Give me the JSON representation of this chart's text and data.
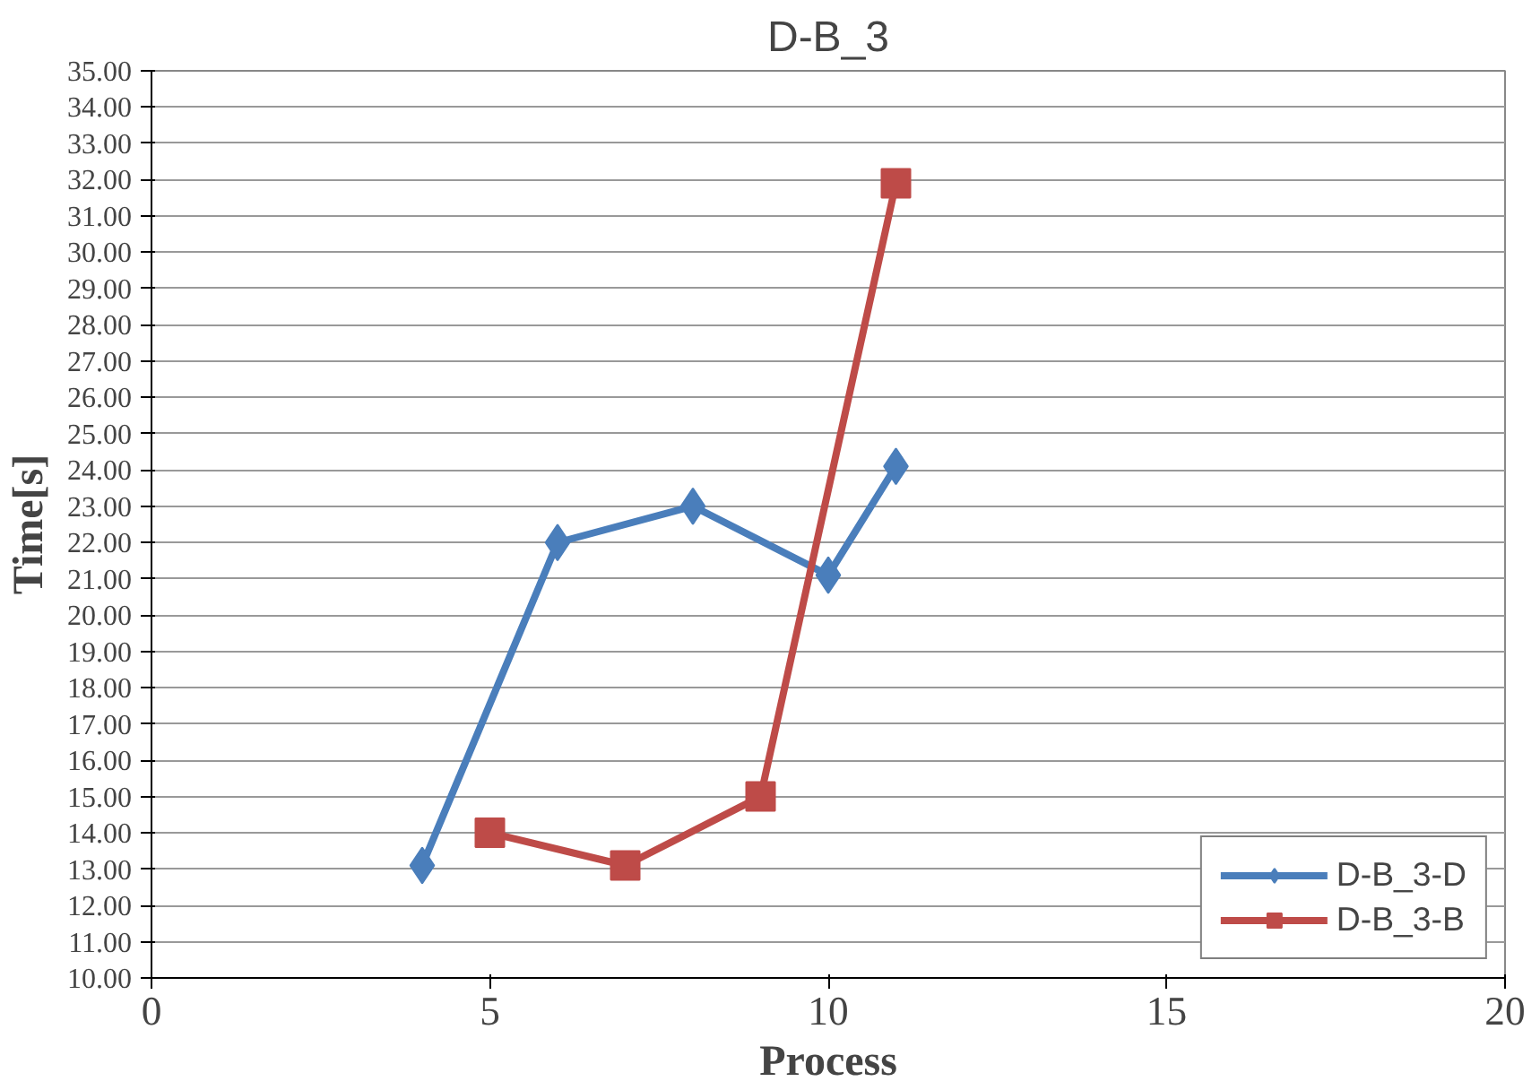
{
  "chart_data": {
    "type": "line",
    "title": "D-B_3",
    "xlabel": "Process",
    "ylabel": "Time[s]",
    "xlim": [
      0,
      20
    ],
    "xticks": [
      0,
      5,
      10,
      15,
      20
    ],
    "ylim": [
      10,
      35
    ],
    "yticks": [
      {
        "value": 10,
        "label": "10.00"
      },
      {
        "value": 11,
        "label": "11.00"
      },
      {
        "value": 12,
        "label": "12.00"
      },
      {
        "value": 13,
        "label": "13.00"
      },
      {
        "value": 14,
        "label": "14.00"
      },
      {
        "value": 15,
        "label": "15.00"
      },
      {
        "value": 16,
        "label": "16.00"
      },
      {
        "value": 17,
        "label": "17.00"
      },
      {
        "value": 18,
        "label": "18.00"
      },
      {
        "value": 19,
        "label": "19.00"
      },
      {
        "value": 20,
        "label": "20.00"
      },
      {
        "value": 21,
        "label": "21.00"
      },
      {
        "value": 22,
        "label": "22.00"
      },
      {
        "value": 23,
        "label": "23.00"
      },
      {
        "value": 24,
        "label": "24.00"
      },
      {
        "value": 25,
        "label": "25.00"
      },
      {
        "value": 26,
        "label": "26.00"
      },
      {
        "value": 27,
        "label": "27.00"
      },
      {
        "value": 28,
        "label": "28.00"
      },
      {
        "value": 29,
        "label": "29.00"
      },
      {
        "value": 30,
        "label": "30.00"
      },
      {
        "value": 31,
        "label": "31.00"
      },
      {
        "value": 32,
        "label": "32.00"
      },
      {
        "value": 33,
        "label": "33.00"
      },
      {
        "value": 34,
        "label": "34.00"
      },
      {
        "value": 35,
        "label": "35.00"
      }
    ],
    "grid": "y",
    "legend": "bottom right",
    "line_style": "solid",
    "series": [
      {
        "name": "D-B_3-D",
        "color": "#4a7ebb",
        "marker": "diamond",
        "x": [
          4,
          6,
          8,
          10,
          11
        ],
        "values": [
          13.1,
          22.0,
          23.0,
          21.1,
          24.1
        ]
      },
      {
        "name": "D-B_3-B",
        "color": "#be4b48",
        "marker": "square",
        "x": [
          5,
          7,
          9,
          11
        ],
        "values": [
          14.0,
          13.1,
          15.0,
          31.9
        ]
      }
    ]
  }
}
